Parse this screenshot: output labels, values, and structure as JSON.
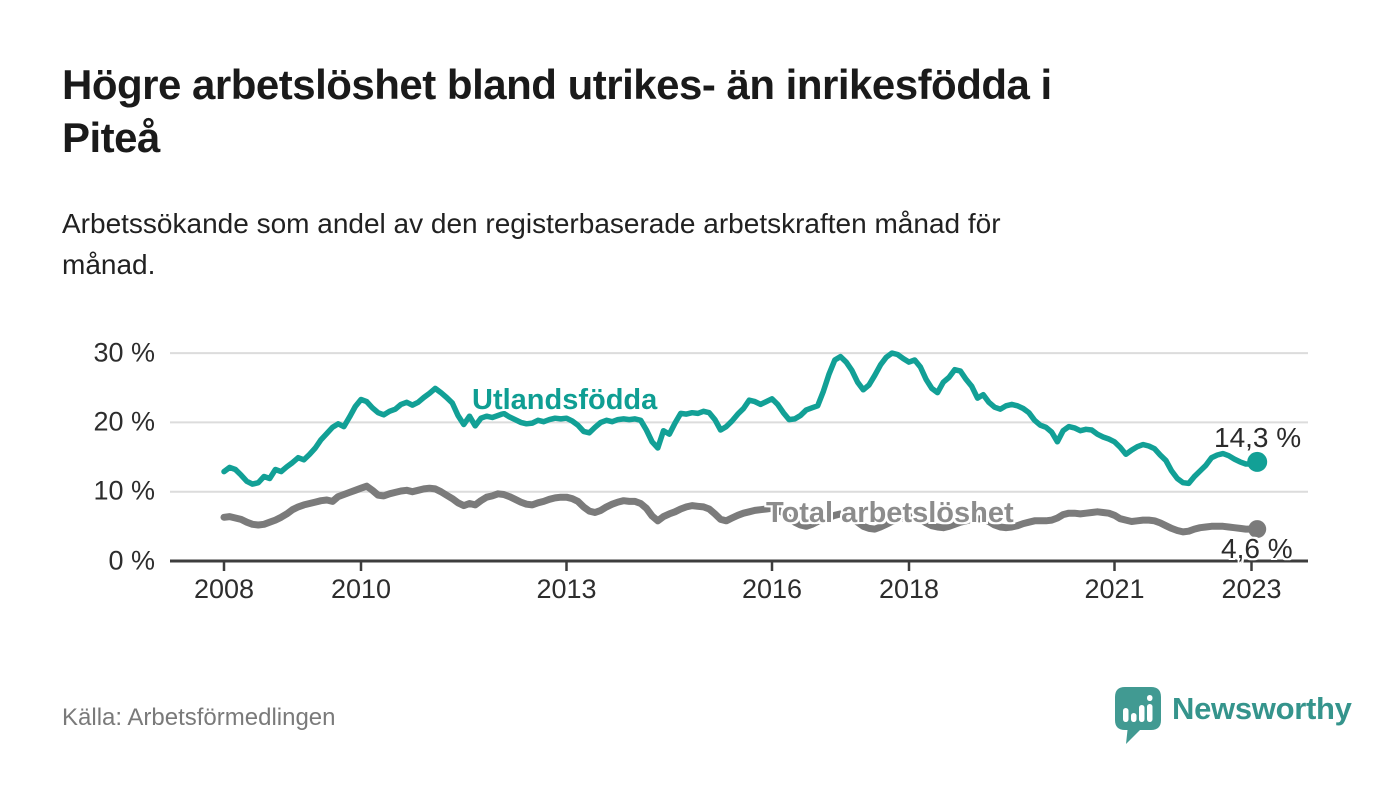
{
  "header": {
    "title": "Högre arbetslöshet bland utrikes- än inrikesfödda i\nPiteå",
    "subtitle": "Arbetssökande som andel av den registerbaserade arbetskraften månad för\nmånad."
  },
  "chart_data": {
    "type": "line",
    "title": "Högre arbetslöshet bland utrikes- än inrikesfödda i Piteå",
    "subtitle": "Arbetssökande som andel av den registerbaserade arbetskraften månad för månad.",
    "x_unit": "month",
    "x_start": "2008-01",
    "x_end": "2023-02",
    "x_tick_years": [
      2008,
      2010,
      2013,
      2016,
      2018,
      2021,
      2023
    ],
    "x_tick_labels": [
      "2008",
      "2010",
      "2013",
      "2016",
      "2018",
      "2021",
      "2023"
    ],
    "y_ticks": [
      30,
      20,
      10,
      0
    ],
    "y_tick_labels": [
      "30 %",
      "20 %",
      "10 %",
      "0 %"
    ],
    "ylim": [
      0,
      31
    ],
    "grid": "horizontal",
    "colors": {
      "grid": "#dcdcdc",
      "axis": "#3d3d3d"
    },
    "series": [
      {
        "name": "Utlandsfödda",
        "color": "#12a096",
        "label_color": "#0f9e93",
        "end_label": "14,3 %",
        "end_value": 14.3,
        "values": [
          12.9,
          13.5,
          13.2,
          12.4,
          11.5,
          11.1,
          11.3,
          12.2,
          11.9,
          13.2,
          12.9,
          13.6,
          14.2,
          14.9,
          14.6,
          15.4,
          16.3,
          17.5,
          18.4,
          19.3,
          19.8,
          19.4,
          20.8,
          22.3,
          23.3,
          23.0,
          22.1,
          21.4,
          21.1,
          21.6,
          21.9,
          22.6,
          22.9,
          22.5,
          22.9,
          23.6,
          24.2,
          24.9,
          24.3,
          23.6,
          22.8,
          21.0,
          19.7,
          20.9,
          19.5,
          20.6,
          20.9,
          20.7,
          21.0,
          21.3,
          20.8,
          20.4,
          20.0,
          19.8,
          19.9,
          20.3,
          20.1,
          20.4,
          20.6,
          20.5,
          20.6,
          20.2,
          19.6,
          18.7,
          18.5,
          19.3,
          20.0,
          20.3,
          20.1,
          20.4,
          20.5,
          20.4,
          20.5,
          20.3,
          18.9,
          17.2,
          16.3,
          18.8,
          18.3,
          19.9,
          21.3,
          21.2,
          21.4,
          21.3,
          21.6,
          21.4,
          20.4,
          18.9,
          19.4,
          20.2,
          21.2,
          22.0,
          23.2,
          23.0,
          22.6,
          23.0,
          23.4,
          22.6,
          21.4,
          20.4,
          20.5,
          21.0,
          21.8,
          22.1,
          22.4,
          24.5,
          27.0,
          29.0,
          29.5,
          28.7,
          27.5,
          25.8,
          24.7,
          25.4,
          26.8,
          28.3,
          29.4,
          30.0,
          29.8,
          29.2,
          28.7,
          29.0,
          28.0,
          26.2,
          24.9,
          24.3,
          25.8,
          26.5,
          27.6,
          27.4,
          26.2,
          25.2,
          23.5,
          24.0,
          22.9,
          22.2,
          21.9,
          22.4,
          22.6,
          22.4,
          22.0,
          21.4,
          20.3,
          19.6,
          19.3,
          18.6,
          17.2,
          18.8,
          19.4,
          19.2,
          18.8,
          19.0,
          18.9,
          18.3,
          17.9,
          17.6,
          17.2,
          16.4,
          15.4,
          16.0,
          16.5,
          16.8,
          16.6,
          16.2,
          15.3,
          14.5,
          13.0,
          11.9,
          11.3,
          11.2,
          12.2,
          13.0,
          13.8,
          14.9,
          15.3,
          15.5,
          15.2,
          14.7,
          14.3,
          14.0,
          14.0,
          14.3
        ]
      },
      {
        "name": "Total arbetslöshet",
        "color": "#7b7b7b",
        "label_color": "#8c8c8c",
        "end_label": "4,6 %",
        "end_value": 4.6,
        "values": [
          6.3,
          6.4,
          6.2,
          6.0,
          5.6,
          5.3,
          5.2,
          5.3,
          5.6,
          5.9,
          6.3,
          6.8,
          7.4,
          7.8,
          8.1,
          8.3,
          8.5,
          8.7,
          8.8,
          8.6,
          9.3,
          9.6,
          9.9,
          10.2,
          10.5,
          10.8,
          10.2,
          9.5,
          9.4,
          9.7,
          9.9,
          10.1,
          10.2,
          10.0,
          10.2,
          10.4,
          10.5,
          10.4,
          10.0,
          9.5,
          9.0,
          8.4,
          8.0,
          8.3,
          8.1,
          8.7,
          9.2,
          9.4,
          9.7,
          9.6,
          9.3,
          8.9,
          8.5,
          8.2,
          8.1,
          8.4,
          8.6,
          8.9,
          9.1,
          9.2,
          9.2,
          9.0,
          8.6,
          7.8,
          7.2,
          7.0,
          7.3,
          7.8,
          8.2,
          8.5,
          8.7,
          8.6,
          8.6,
          8.3,
          7.6,
          6.5,
          5.8,
          6.4,
          6.8,
          7.1,
          7.5,
          7.8,
          8.0,
          7.9,
          7.8,
          7.5,
          6.8,
          6.0,
          5.8,
          6.2,
          6.6,
          6.9,
          7.1,
          7.3,
          7.4,
          7.5,
          7.6,
          7.4,
          6.9,
          6.2,
          5.6,
          5.2,
          5.0,
          5.3,
          5.7,
          6.0,
          6.3,
          6.6,
          6.8,
          6.6,
          6.2,
          5.6,
          5.0,
          4.7,
          4.6,
          4.9,
          5.3,
          5.7,
          6.0,
          6.2,
          6.4,
          6.3,
          6.0,
          5.5,
          5.1,
          4.9,
          4.8,
          5.0,
          5.3,
          5.6,
          5.8,
          6.0,
          6.1,
          6.0,
          5.7,
          5.2,
          4.9,
          4.8,
          4.9,
          5.1,
          5.4,
          5.6,
          5.8,
          5.8,
          5.8,
          5.9,
          6.2,
          6.7,
          6.9,
          6.9,
          6.8,
          6.9,
          7.0,
          7.1,
          7.0,
          6.9,
          6.6,
          6.1,
          5.9,
          5.7,
          5.8,
          5.9,
          5.9,
          5.8,
          5.5,
          5.1,
          4.7,
          4.4,
          4.2,
          4.3,
          4.6,
          4.8,
          4.9,
          5.0,
          5.0,
          5.0,
          4.9,
          4.8,
          4.7,
          4.6,
          4.6,
          4.6
        ]
      }
    ],
    "source": "Källa: Arbetsförmedlingen"
  },
  "branding": {
    "logo_text": "Newsworthy",
    "logo_color": "#35948c",
    "logo_icon": "speech-bubble-bar-chart"
  }
}
